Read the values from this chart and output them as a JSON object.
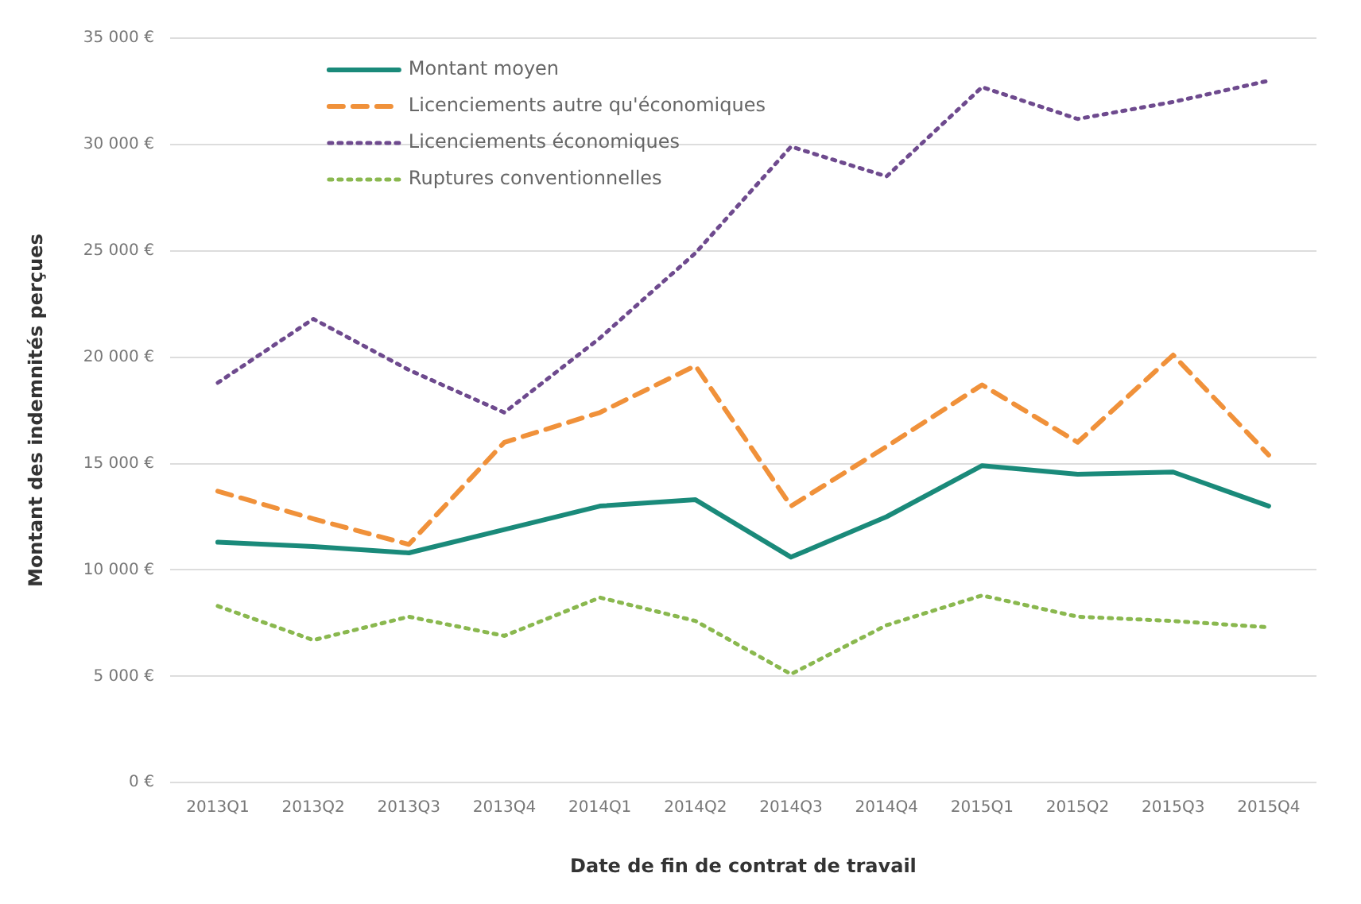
{
  "chart_data": {
    "type": "line",
    "xlabel": "Date de fin de contrat de travail",
    "ylabel": "Montant des indemnités perçues",
    "categories": [
      "2013Q1",
      "2013Q2",
      "2013Q3",
      "2013Q4",
      "2014Q1",
      "2014Q2",
      "2014Q3",
      "2014Q4",
      "2015Q1",
      "2015Q2",
      "2015Q3",
      "2015Q4"
    ],
    "series": [
      {
        "name": "Montant moyen",
        "color": "#1a8a7a",
        "line_style": "solid",
        "values": [
          11300,
          11100,
          10800,
          11900,
          13000,
          13300,
          10600,
          12500,
          14900,
          14500,
          14600,
          13000
        ]
      },
      {
        "name": "Licenciements autre qu'économiques",
        "color": "#f0913a",
        "line_style": "dashed",
        "values": [
          13700,
          12400,
          11200,
          16000,
          17400,
          19600,
          13000,
          15800,
          18700,
          16000,
          20100,
          15400
        ]
      },
      {
        "name": "Licenciements économiques",
        "color": "#6e4a8e",
        "line_style": "dotted",
        "values": [
          18800,
          21800,
          19400,
          17400,
          20900,
          24900,
          29900,
          28500,
          32700,
          31200,
          32000,
          33000
        ]
      },
      {
        "name": "Ruptures conventionnelles",
        "color": "#8ab84f",
        "line_style": "dotted",
        "values": [
          8300,
          6700,
          7800,
          6900,
          8700,
          7600,
          5100,
          7400,
          8800,
          7800,
          7600,
          7300
        ]
      }
    ],
    "ylim": [
      0,
      35000
    ],
    "yticks": [
      {
        "value": 0,
        "label": "0 €"
      },
      {
        "value": 5000,
        "label": "5 000 €"
      },
      {
        "value": 10000,
        "label": "10 000 €"
      },
      {
        "value": 15000,
        "label": "15 000 €"
      },
      {
        "value": 20000,
        "label": "20 000 €"
      },
      {
        "value": 25000,
        "label": "25 000 €"
      },
      {
        "value": 30000,
        "label": "30 000 €"
      },
      {
        "value": 35000,
        "label": "35 000 €"
      }
    ],
    "grid": "y",
    "legend": "top left",
    "marker": "none"
  }
}
